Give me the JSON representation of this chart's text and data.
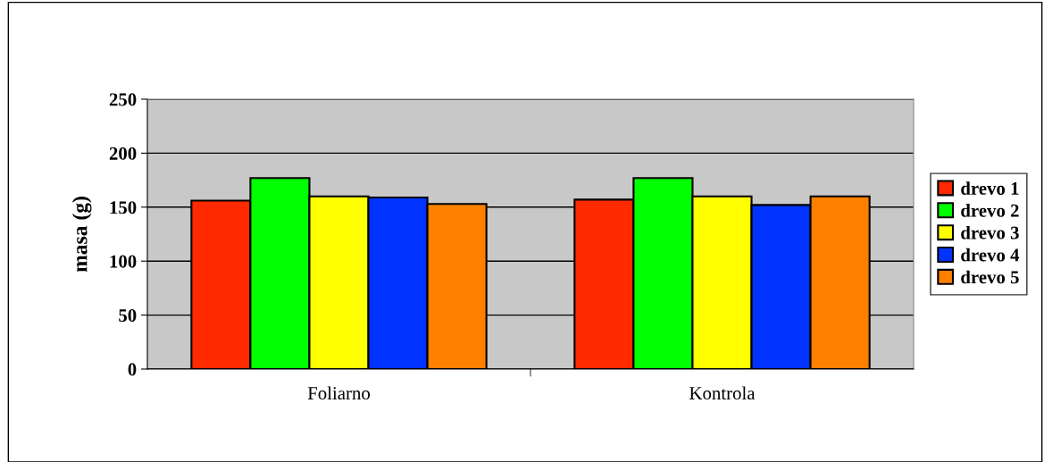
{
  "chart_data": {
    "type": "bar",
    "ylabel": "masa (g)",
    "categories": [
      "Foliarno",
      "Kontrola"
    ],
    "series": [
      {
        "name": "drevo 1",
        "color": "#ff2a00",
        "values": [
          156,
          157
        ]
      },
      {
        "name": "drevo 2",
        "color": "#00ff00",
        "values": [
          177,
          177
        ]
      },
      {
        "name": "drevo 3",
        "color": "#ffff00",
        "values": [
          160,
          160
        ]
      },
      {
        "name": "drevo 4",
        "color": "#0033ff",
        "values": [
          159,
          152
        ]
      },
      {
        "name": "drevo 5",
        "color": "#ff7f00",
        "values": [
          153,
          160
        ]
      }
    ],
    "ylim": [
      0,
      250
    ],
    "yticks": [
      0,
      50,
      100,
      150,
      200,
      250
    ],
    "grid": "y",
    "legend": "right"
  }
}
